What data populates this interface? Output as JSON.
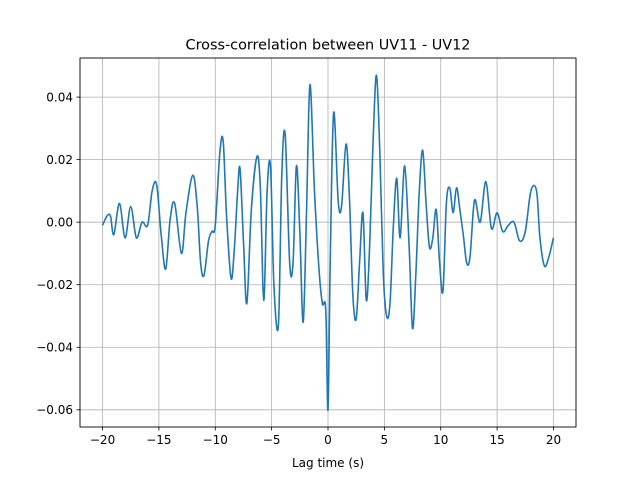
{
  "chart_data": {
    "type": "line",
    "title": "Cross-correlation between UV11 - UV12",
    "xlabel": "Lag time (s)",
    "ylabel": "",
    "xlim": [
      -22,
      22
    ],
    "ylim": [
      -0.0655,
      0.0525
    ],
    "grid": true,
    "xticks": [
      -20,
      -15,
      -10,
      -5,
      0,
      5,
      10,
      15,
      20
    ],
    "xtick_labels": [
      "−20",
      "−15",
      "−10",
      "−5",
      "0",
      "5",
      "10",
      "15",
      "20"
    ],
    "yticks": [
      -0.06,
      -0.04,
      -0.02,
      0.0,
      0.02,
      0.04
    ],
    "ytick_labels": [
      "−0.06",
      "−0.04",
      "−0.02",
      "0.00",
      "0.02",
      "0.04"
    ],
    "series": [
      {
        "color": "#1f77b4",
        "x": [
          -20.0,
          -19.6,
          -19.3,
          -19.0,
          -18.5,
          -18.0,
          -17.5,
          -17.0,
          -16.5,
          -16.0,
          -15.6,
          -15.2,
          -14.8,
          -14.4,
          -14.0,
          -13.6,
          -13.0,
          -12.6,
          -12.0,
          -11.6,
          -11.3,
          -11.0,
          -10.6,
          -10.3,
          -10.0,
          -9.6,
          -9.3,
          -9.0,
          -8.6,
          -8.3,
          -8.0,
          -7.8,
          -7.5,
          -7.2,
          -6.8,
          -6.3,
          -6.0,
          -5.7,
          -5.4,
          -5.1,
          -4.8,
          -4.4,
          -4.1,
          -3.8,
          -3.4,
          -3.1,
          -2.8,
          -2.5,
          -2.2,
          -1.9,
          -1.6,
          -1.2,
          -0.8,
          -0.5,
          -0.2,
          0.0,
          0.2,
          0.5,
          0.9,
          1.2,
          1.6,
          1.9,
          2.2,
          2.5,
          2.8,
          3.1,
          3.4,
          3.7,
          4.0,
          4.3,
          4.6,
          4.9,
          5.2,
          5.5,
          5.8,
          6.1,
          6.4,
          6.8,
          7.2,
          7.5,
          7.8,
          8.1,
          8.4,
          8.7,
          9.0,
          9.3,
          9.6,
          9.9,
          10.2,
          10.5,
          10.8,
          11.1,
          11.4,
          11.7,
          12.0,
          12.3,
          12.6,
          13.0,
          13.5,
          14.0,
          14.5,
          15.0,
          15.5,
          16.0,
          16.5,
          17.0,
          17.5,
          18.0,
          18.5,
          18.8,
          19.2,
          19.6,
          20.0
        ],
        "y": [
          -0.001,
          0.002,
          0.002,
          -0.004,
          0.006,
          -0.005,
          0.005,
          -0.005,
          0.0,
          -0.001,
          0.01,
          0.012,
          -0.004,
          -0.015,
          0.001,
          0.006,
          -0.01,
          0.003,
          0.015,
          0.005,
          -0.013,
          -0.017,
          -0.006,
          -0.003,
          -0.001,
          0.022,
          0.026,
          0.002,
          -0.018,
          -0.008,
          0.011,
          0.017,
          -0.006,
          -0.026,
          0.004,
          0.021,
          0.011,
          -0.025,
          0.01,
          0.018,
          -0.02,
          -0.033,
          0.015,
          0.028,
          -0.013,
          -0.013,
          0.018,
          -0.003,
          -0.032,
          0.004,
          0.044,
          0.01,
          -0.015,
          -0.026,
          -0.028,
          -0.06,
          -0.012,
          0.035,
          0.007,
          0.005,
          0.025,
          0.008,
          -0.023,
          -0.031,
          -0.013,
          0.003,
          -0.025,
          -0.007,
          0.026,
          0.047,
          0.022,
          -0.016,
          -0.03,
          -0.026,
          -0.001,
          0.014,
          -0.005,
          0.018,
          -0.008,
          -0.034,
          -0.016,
          0.01,
          0.023,
          0.006,
          -0.008,
          -0.005,
          0.004,
          -0.013,
          -0.022,
          0.006,
          0.011,
          0.003,
          0.011,
          0.004,
          -0.004,
          -0.013,
          -0.011,
          0.007,
          0.0,
          0.013,
          -0.002,
          0.003,
          -0.003,
          -0.001,
          0.0,
          -0.006,
          -0.003,
          0.01,
          0.01,
          -0.005,
          -0.014,
          -0.011,
          -0.005
        ]
      }
    ]
  }
}
